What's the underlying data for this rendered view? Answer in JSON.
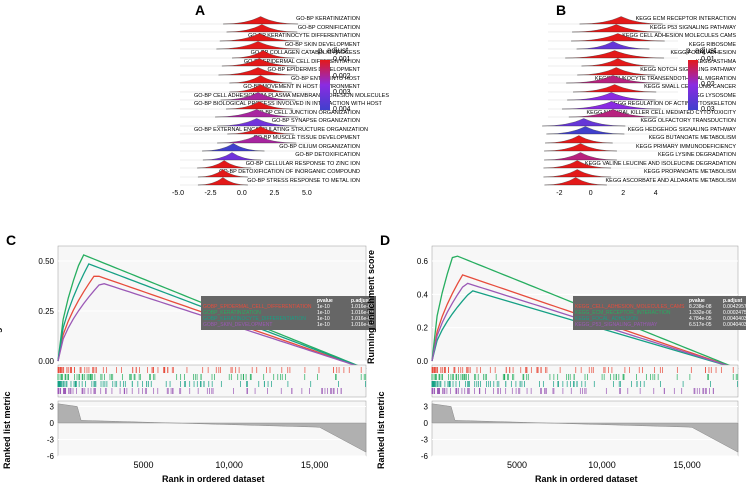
{
  "panel_a": {
    "label": "A",
    "type": "ridgeplot",
    "colorbar_title": "p. adjust",
    "colorbar_colors": [
      "#e31919",
      "#8a2be2",
      "#4040cc"
    ],
    "colorbar_ticks": [
      "0.001",
      "0.002",
      "0.003",
      "0.004"
    ],
    "xticks": [
      "-5.0",
      "-2.5",
      "0.0",
      "2.5",
      "5.0"
    ],
    "xlim": [
      -5,
      5
    ],
    "terms": [
      {
        "label": "GO-BP KERATINIZATION",
        "padj": 0.001,
        "peak": 1.2,
        "width": 1.8
      },
      {
        "label": "GO-BP CORNIFICATION",
        "padj": 0.001,
        "peak": 1.3,
        "width": 1.7
      },
      {
        "label": "GO-BP KERATINOCYTE DIFFERENTIATION",
        "padj": 0.001,
        "peak": 1.1,
        "width": 1.9
      },
      {
        "label": "GO-BP SKIN DEVELOPMENT",
        "padj": 0.001,
        "peak": 1.0,
        "width": 2.0
      },
      {
        "label": "GO-BP COLLAGEN CATABOLIC PROCESS",
        "padj": 0.001,
        "peak": 1.4,
        "width": 1.5
      },
      {
        "label": "GO-BP EPIDERMAL CELL DIFFERENTIATION",
        "padj": 0.001,
        "peak": 1.1,
        "width": 1.8
      },
      {
        "label": "GO-BP EPIDERMIS DEVELOPMENT",
        "padj": 0.001,
        "peak": 1.0,
        "width": 1.9
      },
      {
        "label": "GO-BP ENTRY INTO HOST",
        "padj": 0.001,
        "peak": 1.2,
        "width": 1.5
      },
      {
        "label": "GO-BP MOVEMENT IN HOST ENVIRONMENT",
        "padj": 0.001,
        "peak": 1.2,
        "width": 1.5
      },
      {
        "label": "GO-BP CELL ADHESION VIA PLASMA MEMBRANE ADHESION MOLECULES",
        "padj": 0.002,
        "peak": 1.0,
        "width": 1.8
      },
      {
        "label": "GO-BP BIOLOGICAL PROCESS INVOLVED IN INTERACTION WITH HOST",
        "padj": 0.001,
        "peak": 1.1,
        "width": 1.6
      },
      {
        "label": "GO-BP CELL JUNCTION ORGANIZATION",
        "padj": 0.002,
        "peak": 0.9,
        "width": 2.0
      },
      {
        "label": "GO-BP SYNAPSE ORGANIZATION",
        "padj": 0.003,
        "peak": 0.9,
        "width": 1.9
      },
      {
        "label": "GO-BP EXTERNAL ENCAPSULATING STRUCTURE ORGANIZATION",
        "padj": 0.001,
        "peak": 1.2,
        "width": 1.6
      },
      {
        "label": "GO-BP MUSCLE TISSUE DEVELOPMENT",
        "padj": 0.002,
        "peak": 0.9,
        "width": 1.9
      },
      {
        "label": "GO-BP CILIUM ORGANIZATION",
        "padj": 0.004,
        "peak": -0.9,
        "width": 1.5
      },
      {
        "label": "GO-BP DETOXIFICATION",
        "padj": 0.003,
        "peak": -1.0,
        "width": 1.4
      },
      {
        "label": "GO-BP CELLULAR RESPONSE TO ZINC ION",
        "padj": 0.001,
        "peak": -1.6,
        "width": 1.3
      },
      {
        "label": "GO-BP DETOXIFICATION OF INORGANIC COMPOUND",
        "padj": 0.001,
        "peak": -1.7,
        "width": 1.2
      },
      {
        "label": "GO-BP STRESS RESPONSE TO METAL ION",
        "padj": 0.001,
        "peak": -1.7,
        "width": 1.2
      }
    ]
  },
  "panel_b": {
    "label": "B",
    "type": "ridgeplot",
    "colorbar_title": "p. adjust",
    "colorbar_colors": [
      "#e31919",
      "#8a2be2",
      "#4040cc"
    ],
    "colorbar_ticks": [
      "0.01",
      "0.02",
      "0.03"
    ],
    "xticks": [
      "-2",
      "0",
      "2",
      "4"
    ],
    "xlim": [
      -3,
      5
    ],
    "terms": [
      {
        "label": "KEGG ECM RECEPTOR INTERACTION",
        "padj": 0.005,
        "peak": 1.5,
        "width": 1.6
      },
      {
        "label": "KEGG P53 SIGNALING PATHWAY",
        "padj": 0.008,
        "peak": 1.2,
        "width": 1.7
      },
      {
        "label": "KEGG CELL ADHESION MOLECULES CAMS",
        "padj": 0.008,
        "peak": 1.3,
        "width": 1.8
      },
      {
        "label": "KEGG RIBOSOME",
        "padj": 0.025,
        "peak": 1.0,
        "width": 1.4
      },
      {
        "label": "KEGG FOCAL ADHESION",
        "padj": 0.01,
        "peak": 1.1,
        "width": 1.9
      },
      {
        "label": "KEGG ASTHMA",
        "padj": 0.01,
        "peak": 1.3,
        "width": 1.4
      },
      {
        "label": "KEGG NOTCH SIGNALING PATHWAY",
        "padj": 0.01,
        "peak": 1.2,
        "width": 1.5
      },
      {
        "label": "KEGG LEUKOCYTE TRANSENDOTHELIAL MIGRATION",
        "padj": 0.015,
        "peak": 1.0,
        "width": 1.8
      },
      {
        "label": "KEGG SMALL CELL LUNG CANCER",
        "padj": 0.01,
        "peak": 1.1,
        "width": 1.6
      },
      {
        "label": "KEGG LYSOSOME",
        "padj": 0.02,
        "peak": 0.9,
        "width": 1.7
      },
      {
        "label": "KEGG REGULATION OF ACTIN CYTOSKELETON",
        "padj": 0.02,
        "peak": 0.9,
        "width": 1.9
      },
      {
        "label": "KEGG NATURAL KILLER CELL MEDIATED CYTOTOXICITY",
        "padj": 0.015,
        "peak": 1.0,
        "width": 1.7
      },
      {
        "label": "KEGG OLFACTORY TRANSDUCTION",
        "padj": 0.025,
        "peak": -0.8,
        "width": 1.6
      },
      {
        "label": "KEGG HEDGEHOG SIGNALING PATHWAY",
        "padj": 0.03,
        "peak": -0.7,
        "width": 1.5
      },
      {
        "label": "KEGG BUTANOATE METABOLISM",
        "padj": 0.01,
        "peak": -1.1,
        "width": 1.3
      },
      {
        "label": "KEGG PRIMARY IMMUNODEFICIENCY",
        "padj": 0.01,
        "peak": -1.0,
        "width": 1.4
      },
      {
        "label": "KEGG LYSINE DEGRADATION",
        "padj": 0.015,
        "peak": -1.0,
        "width": 1.4
      },
      {
        "label": "KEGG VALINE LEUCINE AND ISOLEUCINE DEGRADATION",
        "padj": 0.01,
        "peak": -1.2,
        "width": 1.3
      },
      {
        "label": "KEGG PROPANOATE METABOLISM",
        "padj": 0.01,
        "peak": -1.2,
        "width": 1.3
      },
      {
        "label": "KEGG ASCORBATE AND ALDARATE METABOLISM",
        "padj": 0.008,
        "peak": -1.3,
        "width": 1.2
      }
    ]
  },
  "panel_c": {
    "label": "C",
    "type": "gsea",
    "y_label": "Running enrichment score",
    "y2_label": "Ranked list metric",
    "x_label": "Rank in ordered dataset",
    "xticks": [
      "5000",
      "10,000",
      "15,000"
    ],
    "yticks_es": [
      "0.00",
      "0.25",
      "0.50"
    ],
    "yticks_metric": [
      "-6",
      "-3",
      "0",
      "3"
    ],
    "legend_header": [
      "",
      "pvalue",
      "p.adjust"
    ],
    "curves": [
      {
        "name": "GOBP_EPIDERMAL_CELL_DIFFERENTIATION",
        "color": "#e74c3c",
        "pvalue": "1e-10",
        "padjust": "1.016e-07",
        "peak": 0.55,
        "peak_x": 0.12
      },
      {
        "name": "GOBP_KERATINIZATION",
        "color": "#27ae60",
        "pvalue": "1e-10",
        "padjust": "1.016e-07",
        "peak": 0.68,
        "peak_x": 0.08
      },
      {
        "name": "GOBP_KERATINOCYTE_DIFFERENTIATION",
        "color": "#16a085",
        "pvalue": "1e-10",
        "padjust": "1.016e-07",
        "peak": 0.62,
        "peak_x": 0.1
      },
      {
        "name": "GOBP_SKIN_DEVELOPMENT",
        "color": "#9b59b6",
        "pvalue": "1e-10",
        "padjust": "1.016e-07",
        "peak": 0.5,
        "peak_x": 0.14
      }
    ]
  },
  "panel_d": {
    "label": "D",
    "type": "gsea",
    "y_label": "Running enrichment score",
    "y2_label": "Ranked list metric",
    "x_label": "Rank in ordered dataset",
    "xticks": [
      "5000",
      "10,000",
      "15,000"
    ],
    "yticks_es": [
      "0.0",
      "0.2",
      "0.4",
      "0.6"
    ],
    "yticks_metric": [
      "-6",
      "-3",
      "0",
      "3"
    ],
    "legend_header": [
      "",
      "pvalue",
      "p.adjust"
    ],
    "curves": [
      {
        "name": "KEGG_CELL_ADHESION_MOLECULES_CAMS",
        "color": "#e74c3c",
        "pvalue": "8.238e-08",
        "padjust": "0.0042957",
        "peak": 0.55,
        "peak_x": 0.1
      },
      {
        "name": "KEGG_ECM_RECEPTOR_INTERACTION",
        "color": "#27ae60",
        "pvalue": "1.332e-06",
        "padjust": "0.0002475",
        "peak": 0.68,
        "peak_x": 0.07
      },
      {
        "name": "KEGG_FOCAL_ADHESION",
        "color": "#16a085",
        "pvalue": "4.784e-05",
        "padjust": "0.0040403",
        "peak": 0.45,
        "peak_x": 0.13
      },
      {
        "name": "KEGG_P53_SIGNALING_PATHWAY",
        "color": "#9b59b6",
        "pvalue": "6.517e-05",
        "padjust": "0.0040403",
        "peak": 0.5,
        "peak_x": 0.11
      }
    ]
  }
}
